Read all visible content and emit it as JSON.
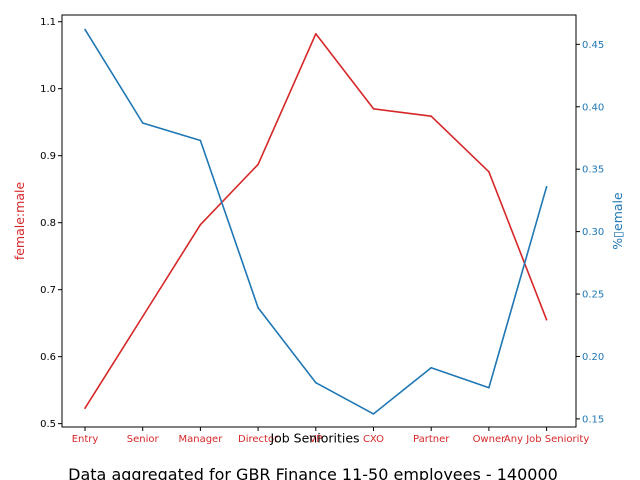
{
  "chart_data": {
    "type": "line",
    "categories": [
      "Entry",
      "Senior",
      "Manager",
      "Director",
      "VP",
      "CXO",
      "Partner",
      "Owner",
      "Any Job Seniority"
    ],
    "xlabel": "Job Seniorities",
    "caption": "Data aggregated for GBR Finance 11-50 employees - 140000",
    "left_axis": {
      "label": "female:male",
      "color": "#d62728",
      "ylim": [
        0.495,
        1.11
      ],
      "ticks": [
        "0.5",
        "0.6",
        "0.7",
        "0.8",
        "0.9",
        "1.0",
        "1.1"
      ]
    },
    "right_axis": {
      "label": "%▯emale",
      "color": "#1f77b4",
      "ylim": [
        0.1435,
        0.4735
      ],
      "ticks": [
        "0.15",
        "0.20",
        "0.25",
        "0.30",
        "0.35",
        "0.40",
        "0.45"
      ]
    },
    "series": [
      {
        "axis": "left",
        "color": "#d62728",
        "values": [
          0.523,
          0.66,
          0.797,
          0.887,
          1.082,
          0.97,
          0.959,
          0.876,
          0.655
        ]
      },
      {
        "axis": "right",
        "color": "#1f77b4",
        "values": [
          0.462,
          0.387,
          0.373,
          0.239,
          0.179,
          0.154,
          0.191,
          0.175,
          0.336
        ]
      }
    ],
    "grid": false
  }
}
